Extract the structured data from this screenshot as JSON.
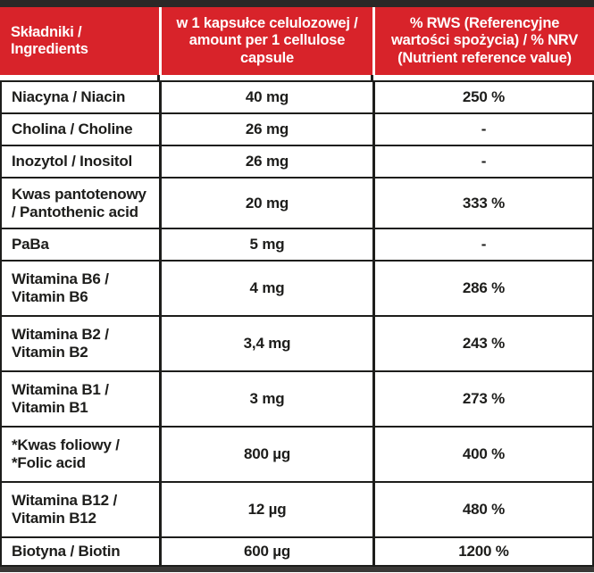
{
  "colors": {
    "accent_red": "#d8232a",
    "top_bar": "#2a2827",
    "bottom_bar": "#3a3836",
    "text": "#1d1d1b"
  },
  "header": {
    "ingredients_label": "Składniki / Ingredients",
    "amount_label": "w 1 kapsułce celulozowej / amount per 1 cellulose capsule",
    "rws_label": "% RWS (Referencyjne wartości spożycia) / % NRV (Nutrient reference value)"
  },
  "rows": [
    {
      "name": "Niacyna / Niacin",
      "amount": "40 mg",
      "rws": "250 %"
    },
    {
      "name": "Cholina / Choline",
      "amount": "26 mg",
      "rws": "-"
    },
    {
      "name": "Inozytol / Inositol",
      "amount": "26 mg",
      "rws": "-"
    },
    {
      "name": "Kwas pantotenowy / Pantothenic acid",
      "amount": "20 mg",
      "rws": "333 %"
    },
    {
      "name": "PaBa",
      "amount": "5 mg",
      "rws": "-"
    },
    {
      "name": "Witamina B6 / Vitamin B6",
      "amount": "4 mg",
      "rws": "286 %"
    },
    {
      "name": "Witamina B2 / Vitamin B2",
      "amount": "3,4 mg",
      "rws": "243 %"
    },
    {
      "name": "Witamina B1 / Vitamin B1",
      "amount": "3 mg",
      "rws": "273 %"
    },
    {
      "name": "*Kwas foliowy / *Folic acid",
      "amount": "800 µg",
      "rws": "400 %"
    },
    {
      "name": "Witamina B12 / Vitamin B12",
      "amount": "12 µg",
      "rws": "480 %"
    },
    {
      "name": "Biotyna / Biotin",
      "amount": "600 µg",
      "rws": "1200 %"
    }
  ]
}
